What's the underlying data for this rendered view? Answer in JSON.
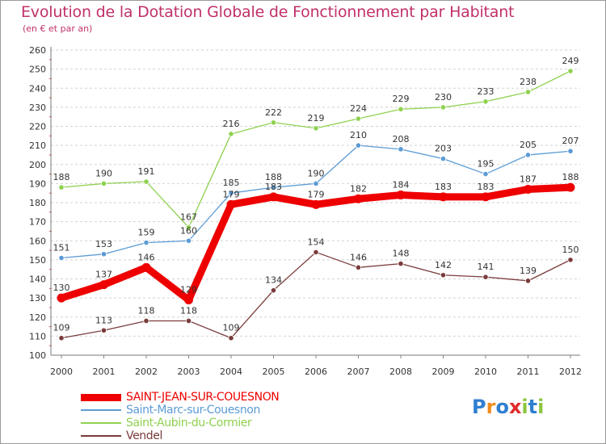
{
  "header": {
    "title": "Evolution de la Dotation Globale de Fonctionnement par Habitant",
    "subtitle": "(en € et par an)"
  },
  "chart_data": {
    "type": "line",
    "title": "Evolution de la Dotation Globale de Fonctionnement par Habitant",
    "subtitle": "(en € et par an)",
    "xlabel": "",
    "ylabel": "",
    "x": [
      "2000",
      "2001",
      "2002",
      "2003",
      "2004",
      "2005",
      "2006",
      "2007",
      "2008",
      "2009",
      "2010",
      "2011",
      "2012"
    ],
    "ylim": [
      100,
      260
    ],
    "yticks": [
      100,
      110,
      120,
      130,
      140,
      150,
      160,
      170,
      180,
      190,
      200,
      210,
      220,
      230,
      240,
      250,
      260
    ],
    "grid": "horizontal dashed",
    "legend_position": "bottom-left",
    "series": [
      {
        "name": "SAINT-JEAN-SUR-COUESNON",
        "color": "#ee0000",
        "values": [
          130,
          137,
          146,
          129,
          179,
          183,
          179,
          182,
          184,
          183,
          183,
          187,
          188
        ]
      },
      {
        "name": "Saint-Marc-sur-Couesnon",
        "color": "#5b9bd5",
        "values": [
          151,
          153,
          159,
          160,
          185,
          188,
          190,
          210,
          208,
          203,
          195,
          205,
          207
        ]
      },
      {
        "name": "Saint-Aubin-du-Cormier",
        "color": "#8fd14f",
        "values": [
          188,
          190,
          191,
          167,
          216,
          222,
          219,
          224,
          229,
          230,
          233,
          238,
          249
        ]
      },
      {
        "name": "Vendel",
        "color": "#7a3b3b",
        "values": [
          109,
          113,
          118,
          118,
          109,
          134,
          154,
          146,
          148,
          142,
          141,
          139,
          150
        ]
      }
    ]
  },
  "logo": {
    "letters": [
      "P",
      "r",
      "o",
      "x",
      "i",
      "t",
      "i"
    ],
    "colors": [
      "#2f7fd1",
      "#f08c1e",
      "#2f7fd1",
      "#e02a2a",
      "#8cc63f",
      "#2f7fd1",
      "#8cc63f"
    ]
  }
}
